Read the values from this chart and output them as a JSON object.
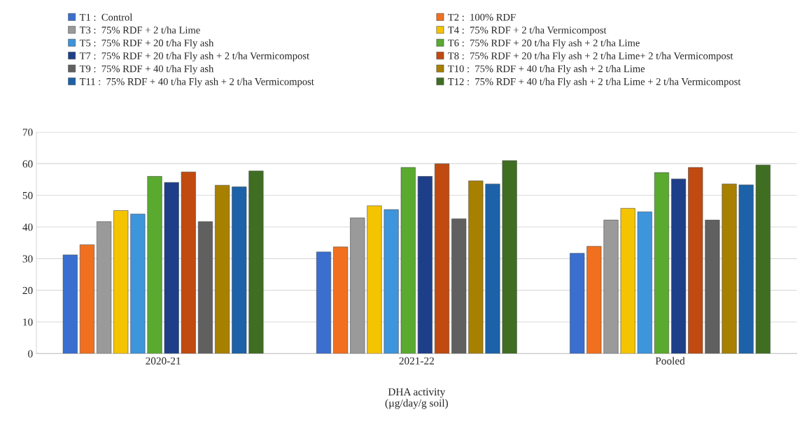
{
  "chart_data": {
    "type": "bar",
    "xlabel": "DHA activity\n(µg/day/g soil)",
    "categories": [
      "2020-21",
      "2021-22",
      "Pooled"
    ],
    "ylim": [
      0,
      70
    ],
    "yticks": [
      0,
      10,
      20,
      30,
      40,
      50,
      60,
      70
    ],
    "grid": "y",
    "legend": "top",
    "series": [
      {
        "name": "T1 :  Control",
        "color": "#3a6fd0",
        "values": [
          31.2,
          32.1,
          31.7
        ]
      },
      {
        "name": "T2 :  100% RDF",
        "color": "#f07020",
        "values": [
          34.4,
          33.7,
          33.9
        ]
      },
      {
        "name": "T3 :  75% RDF + 2 t/ha Lime",
        "color": "#9a9a9a",
        "values": [
          41.7,
          42.9,
          42.2
        ]
      },
      {
        "name": "T4 :  75% RDF + 2 t/ha Vermicompost",
        "color": "#f5c400",
        "values": [
          45.2,
          46.7,
          45.9
        ]
      },
      {
        "name": "T5 :  75% RDF + 20 t/ha Fly ash",
        "color": "#3d95dc",
        "values": [
          44.1,
          45.5,
          44.8
        ]
      },
      {
        "name": "T6 :  75% RDF + 20 t/ha Fly ash + 2 t/ha Lime",
        "color": "#5aaa30",
        "values": [
          56.0,
          58.8,
          57.2
        ]
      },
      {
        "name": "T7 :  75% RDF + 20 t/ha Fly ash + 2 t/ha Vermicompost",
        "color": "#1d3f8a",
        "values": [
          54.1,
          56.0,
          55.2
        ]
      },
      {
        "name": "T8 :  75% RDF + 20 t/ha Fly ash + 2 t/ha Lime+ 2 t/ha Vermicompost",
        "color": "#c04a10",
        "values": [
          57.4,
          60.0,
          58.8
        ]
      },
      {
        "name": "T9 :  75% RDF + 40 t/ha Fly ash",
        "color": "#606060",
        "values": [
          41.7,
          42.6,
          42.2
        ]
      },
      {
        "name": "T10 :  75% RDF + 40 t/ha Fly ash + 2 t/ha Lime",
        "color": "#a88000",
        "values": [
          53.2,
          54.6,
          53.6
        ]
      },
      {
        "name": "T11 :  75% RDF + 40 t/ha Fly ash + 2 t/ha Vermicompost",
        "color": "#1d62a8",
        "values": [
          52.7,
          53.6,
          53.3
        ]
      },
      {
        "name": "T12 :  75% RDF + 40 t/ha Fly ash + 2 t/ha Lime + 2 t/ha Vermicompost",
        "color": "#3f6e22",
        "values": [
          57.7,
          61.0,
          59.6
        ]
      }
    ]
  }
}
